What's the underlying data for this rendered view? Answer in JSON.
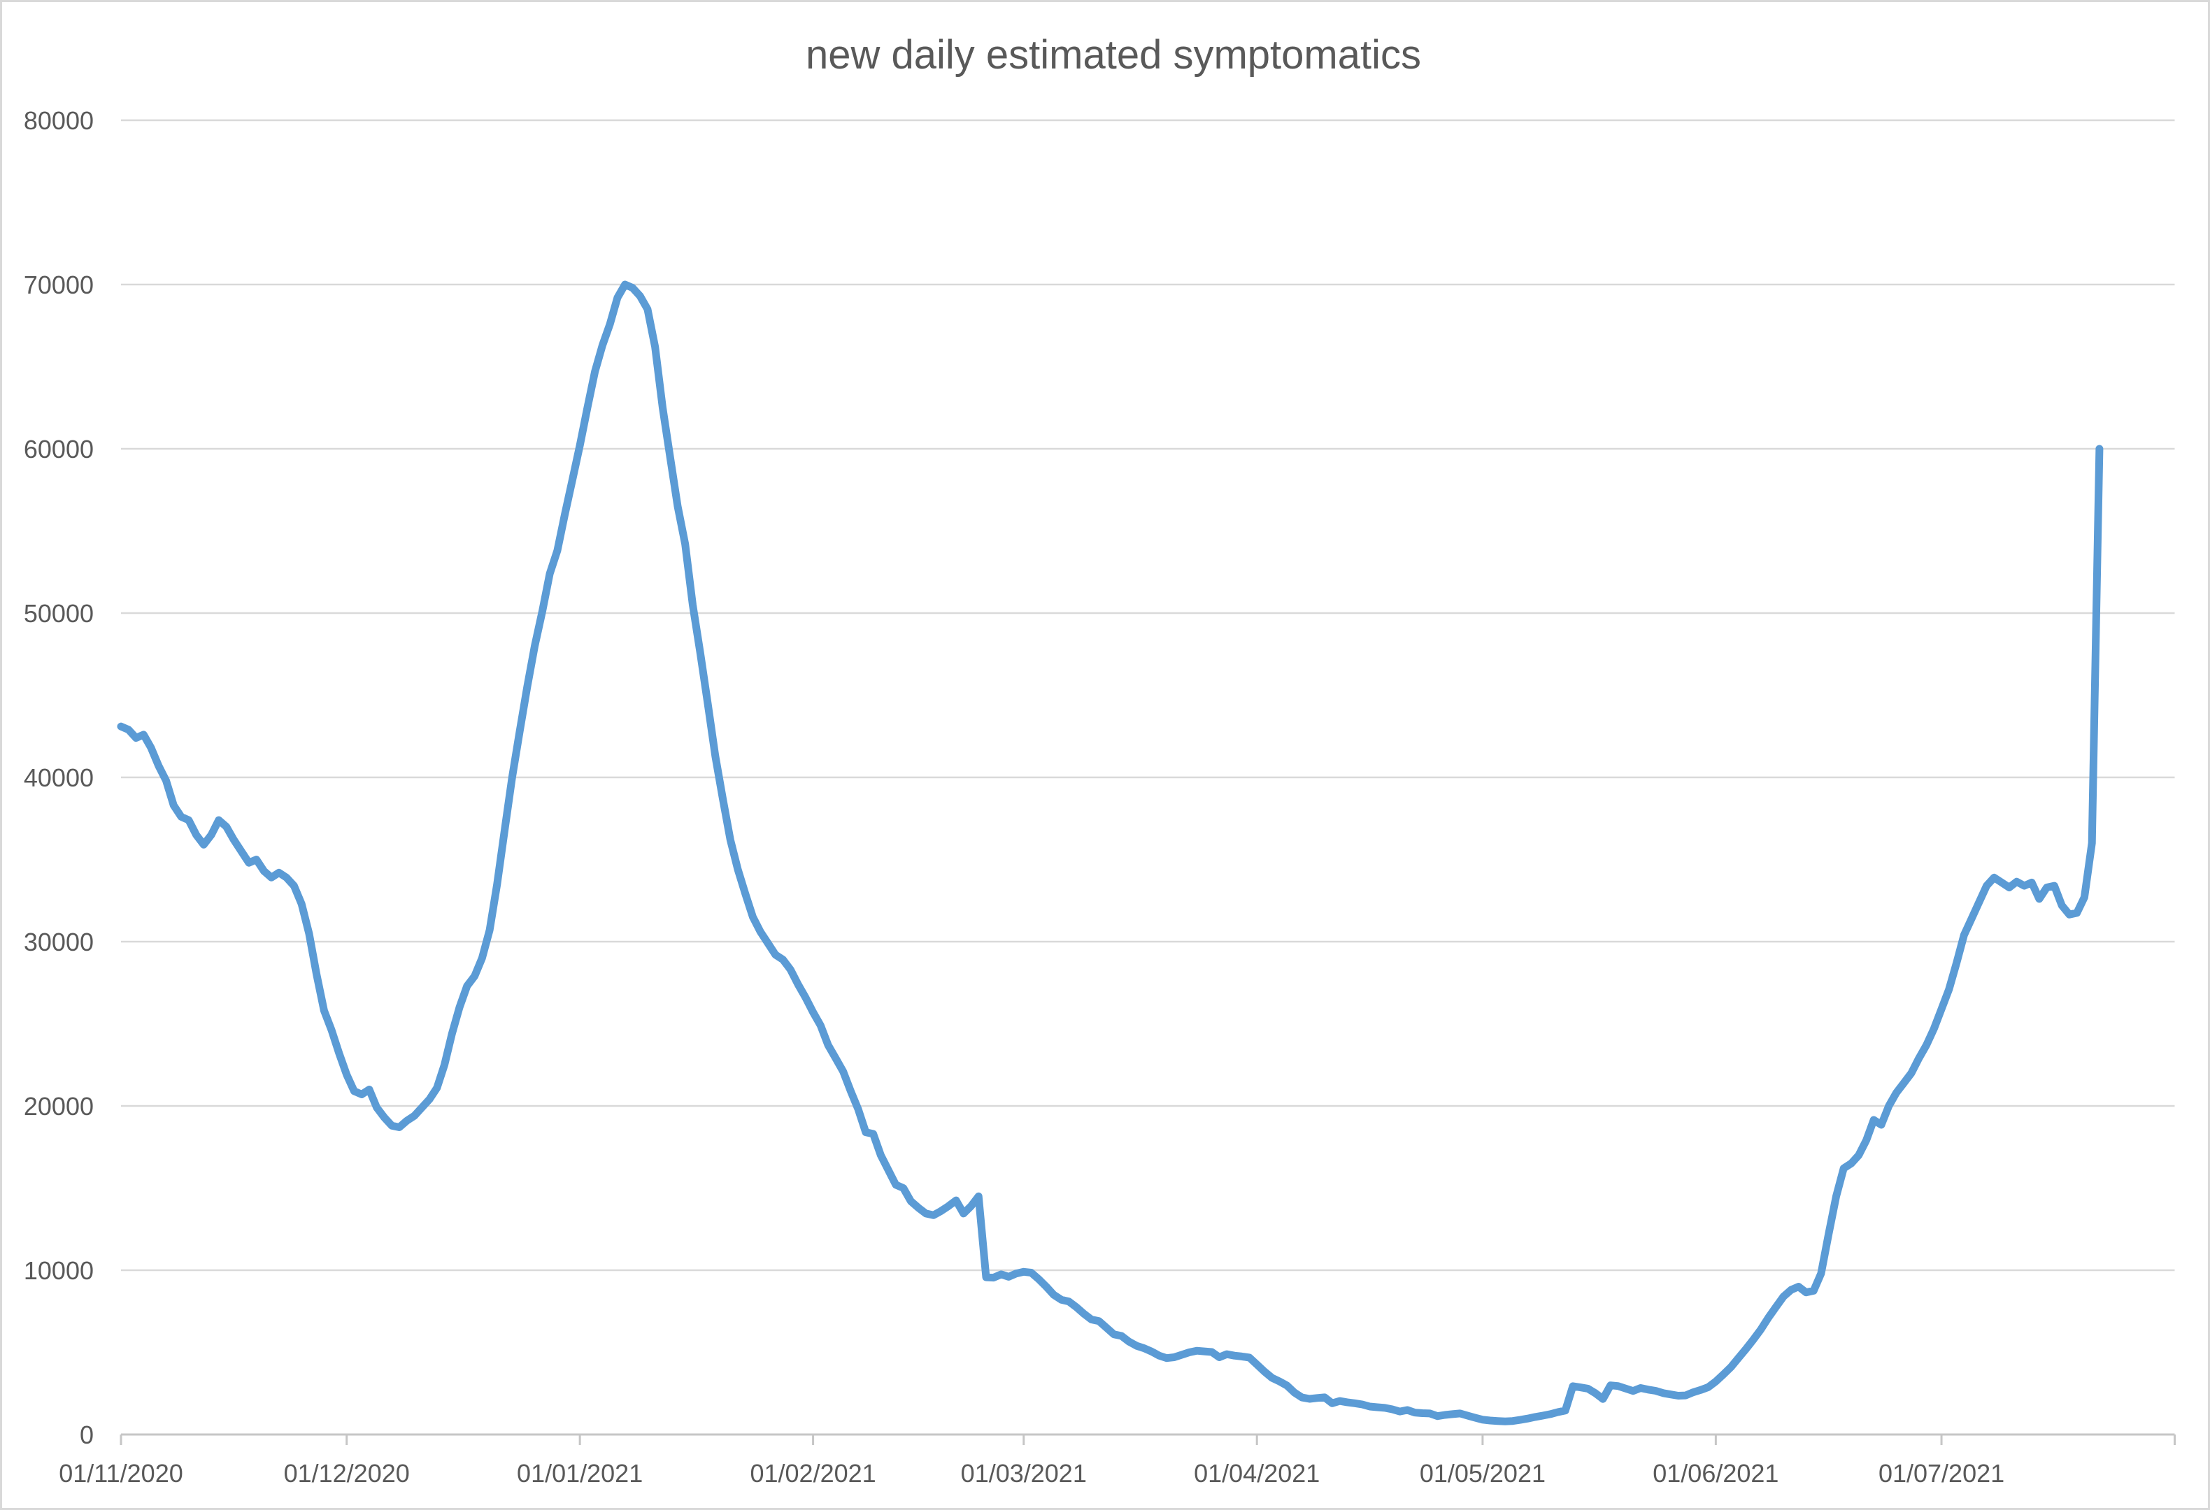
{
  "chart_data": {
    "type": "line",
    "title": "new daily estimated symptomatics",
    "xlabel": "",
    "ylabel": "",
    "ylim": [
      0,
      80000
    ],
    "grid": "horizontal",
    "legend": "none",
    "y_tick_labels": [
      "0",
      "10000",
      "20000",
      "30000",
      "40000",
      "50000",
      "60000",
      "70000",
      "80000"
    ],
    "x_tick_labels": [
      "01/11/2020",
      "01/12/2020",
      "01/01/2021",
      "01/02/2021",
      "01/03/2021",
      "01/04/2021",
      "01/05/2021",
      "01/06/2021",
      "01/07/2021"
    ],
    "x_axis_end_date": "01/08/2021",
    "colors": {
      "line": "#5B9BD5",
      "grid": "#D9D9D9",
      "axis": "#C6C6C6",
      "text": "#595959",
      "frame": "#D9D9D9",
      "background": "#FFFFFF"
    },
    "series": {
      "start_date": "2020-11-01",
      "frequency": "daily",
      "months": [
        {
          "month": "2020-11",
          "values": [
            43100,
            42900,
            42400,
            42600,
            41800,
            40700,
            39800,
            38300,
            37600,
            37400,
            36500,
            35900,
            36500,
            37400,
            37000,
            36200,
            35500,
            34800,
            35000,
            34300,
            33900,
            34200,
            33900,
            33400,
            32300,
            30500,
            28000,
            25800,
            24600,
            23200
          ]
        },
        {
          "month": "2020-12",
          "values": [
            21900,
            20900,
            20700,
            21000,
            19900,
            19300,
            18800,
            18700,
            19100,
            19400,
            19900,
            20400,
            21100,
            22500,
            24400,
            26000,
            27300,
            27900,
            29000,
            30700,
            33500,
            36800,
            40000,
            42800,
            45500,
            48000,
            50100,
            52400,
            53800,
            56000,
            58100
          ]
        },
        {
          "month": "2021-01",
          "values": [
            60200,
            62500,
            64700,
            66300,
            67600,
            69200,
            70000,
            69800,
            69300,
            68500,
            66200,
            62500,
            59500,
            56500,
            54200,
            50500,
            47600,
            44500,
            41300,
            38700,
            36200,
            34400,
            32900,
            31500,
            30600,
            29900,
            29200,
            28900,
            28300,
            27400,
            26600
          ]
        },
        {
          "month": "2021-02",
          "values": [
            25700,
            24900,
            23700,
            22900,
            22100,
            20900,
            19800,
            18400,
            18300,
            17000,
            16100,
            15200,
            15000,
            14200,
            13800,
            13450,
            13350,
            13600,
            13900,
            14250,
            13450,
            13900,
            14500,
            9570,
            9550,
            9750,
            9600,
            9800
          ]
        },
        {
          "month": "2021-03",
          "values": [
            9900,
            9850,
            9450,
            9000,
            8500,
            8200,
            8100,
            7750,
            7350,
            7000,
            6900,
            6500,
            6100,
            6000,
            5650,
            5400,
            5250,
            5050,
            4800,
            4650,
            4700,
            4850,
            5000,
            5100,
            5060,
            5020,
            4700,
            4890,
            4800,
            4750,
            4680
          ]
        },
        {
          "month": "2021-04",
          "values": [
            4260,
            3830,
            3450,
            3230,
            2980,
            2550,
            2250,
            2170,
            2220,
            2260,
            1900,
            2040,
            1960,
            1900,
            1830,
            1700,
            1660,
            1620,
            1530,
            1400,
            1490,
            1330,
            1300,
            1280,
            1120,
            1190,
            1240,
            1280,
            1150,
            1020
          ]
        },
        {
          "month": "2021-05",
          "values": [
            900,
            850,
            820,
            800,
            820,
            890,
            970,
            1070,
            1150,
            1240,
            1360,
            1460,
            2940,
            2870,
            2790,
            2510,
            2160,
            2990,
            2950,
            2800,
            2650,
            2830,
            2730,
            2660,
            2520,
            2440,
            2360,
            2380,
            2570,
            2710,
            2880
          ]
        },
        {
          "month": "2021-06",
          "values": [
            3230,
            3650,
            4100,
            4650,
            5200,
            5780,
            6400,
            7120,
            7760,
            8400,
            8800,
            9000,
            8650,
            8750,
            9800,
            12200,
            14500,
            16200,
            16500,
            17000,
            17900,
            19150,
            18850,
            20000,
            20800,
            21400,
            22000,
            22900,
            23700,
            24700
          ]
        },
        {
          "month": "2021-07",
          "values": [
            25900,
            27100,
            28700,
            30400,
            31400,
            32400,
            33400,
            33900,
            33600,
            33300,
            33650,
            33400,
            33600,
            32600,
            33300,
            33400,
            32200,
            31650,
            31750,
            32700,
            36000,
            60000
          ]
        }
      ]
    }
  }
}
